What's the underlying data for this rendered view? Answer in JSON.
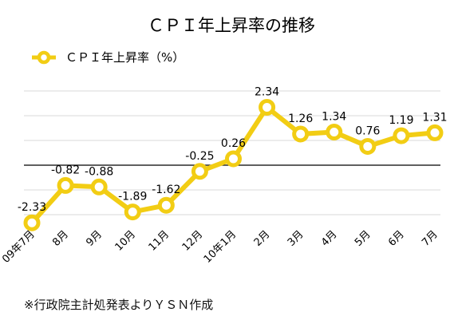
{
  "chart_data": {
    "type": "line",
    "title": "ＣＰＩ年上昇率の推移",
    "categories": [
      "09年7月",
      "8月",
      "9月",
      "10月",
      "11月",
      "12月",
      "10年1月",
      "2月",
      "3月",
      "4月",
      "5月",
      "6月",
      "7月"
    ],
    "series": [
      {
        "name": "ＣＰＩ年上昇率（%）",
        "values": [
          -2.33,
          -0.82,
          -0.88,
          -1.89,
          -1.62,
          -0.25,
          0.26,
          2.34,
          1.26,
          1.34,
          0.76,
          1.19,
          1.31
        ]
      }
    ],
    "data_labels": [
      "-2.33",
      "-0.82",
      "-0.88",
      "-1.89",
      "-1.62",
      "-0.25",
      "0.26",
      "2.34",
      "1.26",
      "1.34",
      "0.76",
      "1.19",
      "1.31"
    ],
    "xlabel": "",
    "ylabel": "",
    "ylim": [
      -3,
      4
    ],
    "y_gridline_step": 1,
    "grid": true,
    "legend_position": "top-left",
    "colors": {
      "series": "#F2CD14",
      "marker_fill": "#ffffff",
      "grid": "#d9d9d9",
      "zero_line": "#000000"
    }
  },
  "source_note": "※行政院主計処発表よりＹＳＮ作成"
}
